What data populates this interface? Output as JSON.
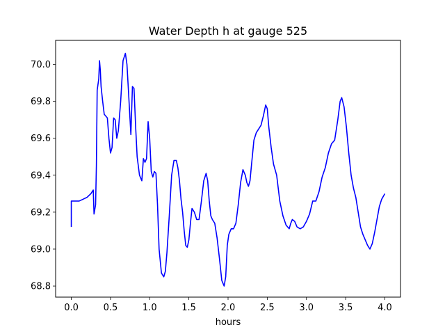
{
  "chart_data": {
    "type": "line",
    "title": "Water Depth h at gauge 525",
    "xlabel": "hours",
    "ylabel": "",
    "xlim": [
      -0.2,
      4.2
    ],
    "ylim": [
      68.74,
      70.13
    ],
    "xticks": [
      0.0,
      0.5,
      1.0,
      1.5,
      2.0,
      2.5,
      3.0,
      3.5,
      4.0
    ],
    "xtick_labels": [
      "0.0",
      "0.5",
      "1.0",
      "1.5",
      "2.0",
      "2.5",
      "3.0",
      "3.5",
      "4.0"
    ],
    "yticks": [
      68.8,
      69.0,
      69.2,
      69.4,
      69.6,
      69.8,
      70.0
    ],
    "ytick_labels": [
      "68.8",
      "69.0",
      "69.2",
      "69.4",
      "69.6",
      "69.8",
      "70.0"
    ],
    "grid": false,
    "legend": "none",
    "series": [
      {
        "color": "#0000ff",
        "x": [
          0.0,
          0.0,
          0.05,
          0.1,
          0.15,
          0.2,
          0.25,
          0.28,
          0.29,
          0.31,
          0.32,
          0.33,
          0.34,
          0.35,
          0.36,
          0.37,
          0.38,
          0.4,
          0.42,
          0.44,
          0.46,
          0.48,
          0.5,
          0.52,
          0.54,
          0.56,
          0.58,
          0.6,
          0.63,
          0.66,
          0.69,
          0.71,
          0.73,
          0.76,
          0.78,
          0.8,
          0.82,
          0.84,
          0.87,
          0.9,
          0.92,
          0.94,
          0.96,
          0.98,
          1.0,
          1.02,
          1.04,
          1.06,
          1.08,
          1.1,
          1.12,
          1.15,
          1.18,
          1.2,
          1.22,
          1.25,
          1.28,
          1.31,
          1.34,
          1.36,
          1.38,
          1.4,
          1.42,
          1.44,
          1.46,
          1.48,
          1.5,
          1.52,
          1.54,
          1.57,
          1.6,
          1.63,
          1.66,
          1.69,
          1.72,
          1.74,
          1.76,
          1.78,
          1.8,
          1.83,
          1.86,
          1.89,
          1.92,
          1.95,
          1.97,
          1.99,
          2.01,
          2.04,
          2.07,
          2.1,
          2.13,
          2.16,
          2.19,
          2.22,
          2.24,
          2.26,
          2.28,
          2.3,
          2.33,
          2.36,
          2.39,
          2.42,
          2.45,
          2.48,
          2.5,
          2.52,
          2.55,
          2.58,
          2.62,
          2.66,
          2.7,
          2.74,
          2.78,
          2.8,
          2.82,
          2.85,
          2.88,
          2.92,
          2.96,
          3.0,
          3.04,
          3.08,
          3.12,
          3.16,
          3.2,
          3.24,
          3.28,
          3.32,
          3.36,
          3.4,
          3.43,
          3.45,
          3.48,
          3.51,
          3.54,
          3.57,
          3.6,
          3.63,
          3.66,
          3.69,
          3.72,
          3.75,
          3.78,
          3.81,
          3.84,
          3.87,
          3.9,
          3.93,
          3.96,
          4.0
        ],
        "y": [
          69.12,
          69.26,
          69.26,
          69.26,
          69.27,
          69.28,
          69.3,
          69.32,
          69.19,
          69.24,
          69.45,
          69.86,
          69.89,
          69.92,
          70.02,
          69.97,
          69.88,
          69.8,
          69.73,
          69.72,
          69.71,
          69.6,
          69.52,
          69.55,
          69.71,
          69.7,
          69.6,
          69.64,
          69.8,
          70.02,
          70.06,
          70.0,
          69.85,
          69.62,
          69.88,
          69.87,
          69.67,
          69.5,
          69.4,
          69.37,
          69.49,
          69.47,
          69.49,
          69.69,
          69.6,
          69.42,
          69.39,
          69.42,
          69.41,
          69.24,
          69.0,
          68.87,
          68.85,
          68.88,
          68.98,
          69.18,
          69.4,
          69.48,
          69.48,
          69.44,
          69.37,
          69.27,
          69.2,
          69.1,
          69.02,
          69.01,
          69.05,
          69.14,
          69.22,
          69.2,
          69.16,
          69.16,
          69.26,
          69.37,
          69.41,
          69.37,
          69.26,
          69.18,
          69.16,
          69.14,
          69.06,
          68.95,
          68.83,
          68.8,
          68.85,
          69.02,
          69.08,
          69.11,
          69.11,
          69.14,
          69.24,
          69.36,
          69.43,
          69.4,
          69.36,
          69.34,
          69.37,
          69.46,
          69.59,
          69.63,
          69.65,
          69.67,
          69.72,
          69.78,
          69.76,
          69.66,
          69.55,
          69.46,
          69.4,
          69.26,
          69.18,
          69.13,
          69.11,
          69.14,
          69.16,
          69.15,
          69.12,
          69.11,
          69.12,
          69.15,
          69.19,
          69.26,
          69.26,
          69.31,
          69.39,
          69.44,
          69.52,
          69.57,
          69.59,
          69.7,
          69.8,
          69.82,
          69.77,
          69.66,
          69.52,
          69.4,
          69.33,
          69.28,
          69.2,
          69.12,
          69.08,
          69.05,
          69.02,
          69.0,
          69.03,
          69.09,
          69.16,
          69.23,
          69.27,
          69.3
        ]
      }
    ]
  }
}
